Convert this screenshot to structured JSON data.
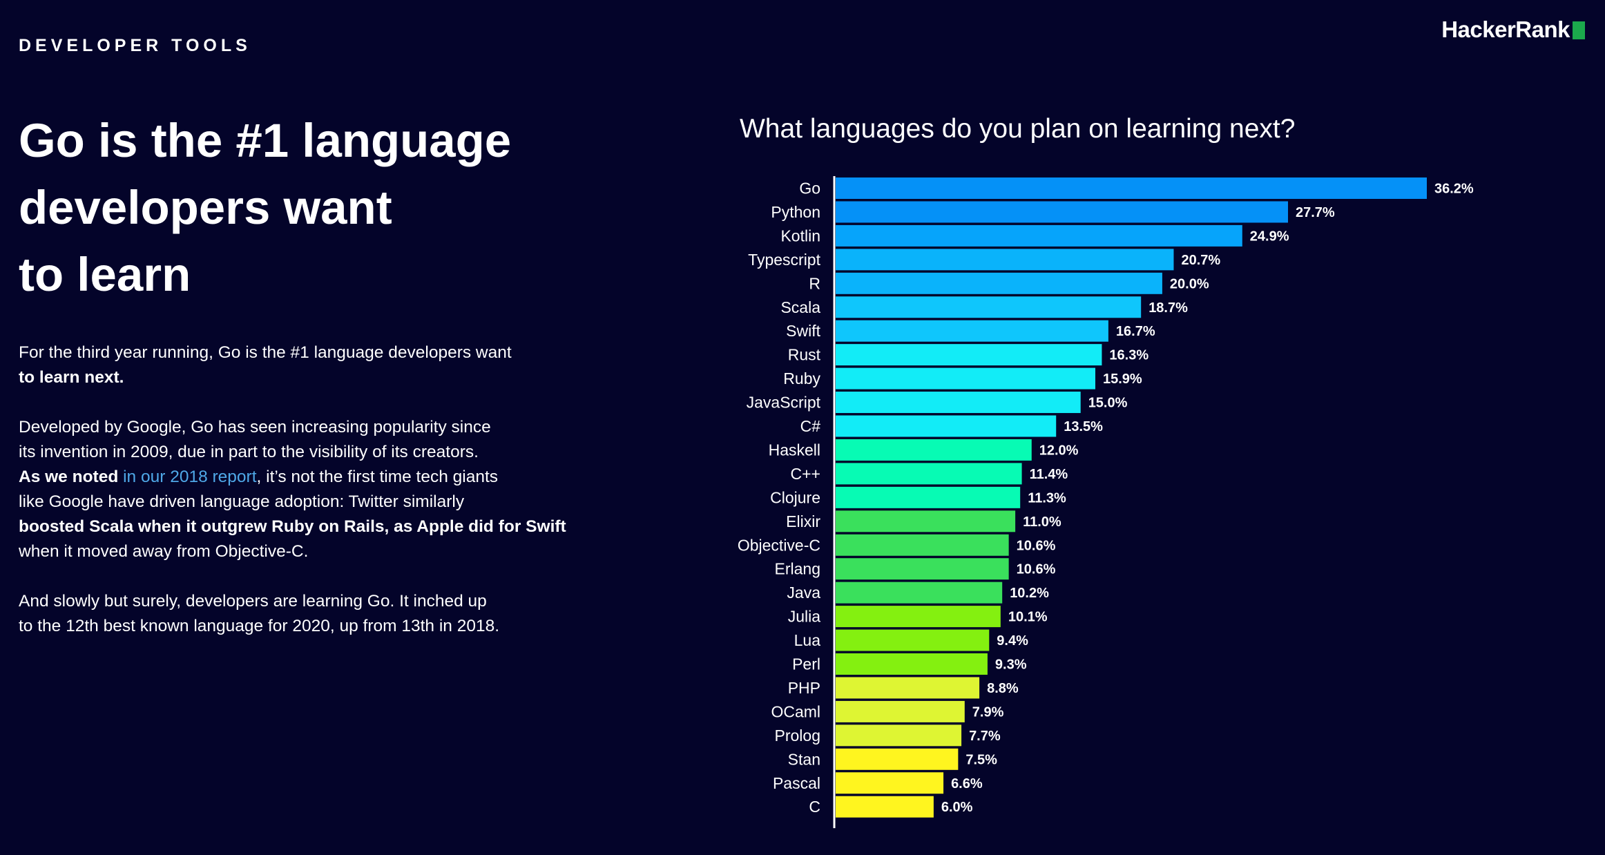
{
  "header": {
    "section_label": "DEVELOPER TOOLS",
    "brand": "HackerRank"
  },
  "headline": {
    "lines": [
      "Go is the #1 language",
      "developers want",
      "to learn"
    ]
  },
  "body": {
    "p1": [
      "For the third year running, Go is the #1 language developers want",
      "to learn next."
    ],
    "p2": {
      "l1": "Developed by Google, Go has seen increasing popularity since",
      "l2": "its invention in 2009, due in part to the visibility of its creators.",
      "l3_start": "As we noted",
      "l3_link": "in our 2018 report",
      "l3_end": ", it’s not the first time tech giants",
      "l4": "like Google have driven language adoption: Twitter similarly",
      "l5": "boosted Scala when it outgrew Ruby on Rails, as Apple did for Swift",
      "l6": "when it moved away from Objective-C."
    },
    "p3": [
      "And slowly but surely, developers are learning Go. It inched up",
      "to the 12th best known language for 2020, up from 13th in 2018."
    ]
  },
  "chart_data": {
    "type": "bar",
    "orientation": "horizontal",
    "title": "What languages do you plan on learning next?",
    "xlabel": "",
    "ylabel": "",
    "unit": "%",
    "xlim": [
      0,
      36.2
    ],
    "grid": false,
    "legend": "none",
    "categories": [
      "Go",
      "Python",
      "Kotlin",
      "Typescript",
      "R",
      "Scala",
      "Swift",
      "Rust",
      "Ruby",
      "JavaScript",
      "C#",
      "Haskell",
      "C++",
      "Clojure",
      "Elixir",
      "Objective-C",
      "Erlang",
      "Java",
      "Julia",
      "Lua",
      "Perl",
      "PHP",
      "OCaml",
      "Prolog",
      "Stan",
      "Pascal",
      "C"
    ],
    "values": [
      36.2,
      27.7,
      24.9,
      20.7,
      20.0,
      18.7,
      16.7,
      16.3,
      15.9,
      15.0,
      13.5,
      12.0,
      11.4,
      11.3,
      11.0,
      10.6,
      10.6,
      10.2,
      10.1,
      9.4,
      9.3,
      8.8,
      7.9,
      7.7,
      7.5,
      6.6,
      6.0
    ],
    "value_labels": [
      "36.2%",
      "27.7%",
      "24.9%",
      "20.7%",
      "20.0%",
      "18.7%",
      "16.7%",
      "16.3%",
      "15.9%",
      "15.0%",
      "13.5%",
      "12.0%",
      "11.4%",
      "11.3%",
      "11.0%",
      "10.6%",
      "10.6%",
      "10.2%",
      "10.1%",
      "9.4%",
      "9.3%",
      "8.8%",
      "7.9%",
      "7.7%",
      "7.5%",
      "6.6%",
      "6.0%"
    ],
    "colors": [
      "#0591f7",
      "#0591f7",
      "#06a4fb",
      "#0ab3fb",
      "#0ab3fb",
      "#0fc6fc",
      "#0fc6fc",
      "#12ecf7",
      "#12ecf7",
      "#12ecf7",
      "#12ecf7",
      "#07fbb4",
      "#07fbb4",
      "#07fbb4",
      "#3ae05c",
      "#3ae05c",
      "#3ae05c",
      "#3ae05c",
      "#84f010",
      "#84f010",
      "#84f010",
      "#def533",
      "#def533",
      "#def533",
      "#fff51f",
      "#fff51f",
      "#fff51f"
    ]
  }
}
